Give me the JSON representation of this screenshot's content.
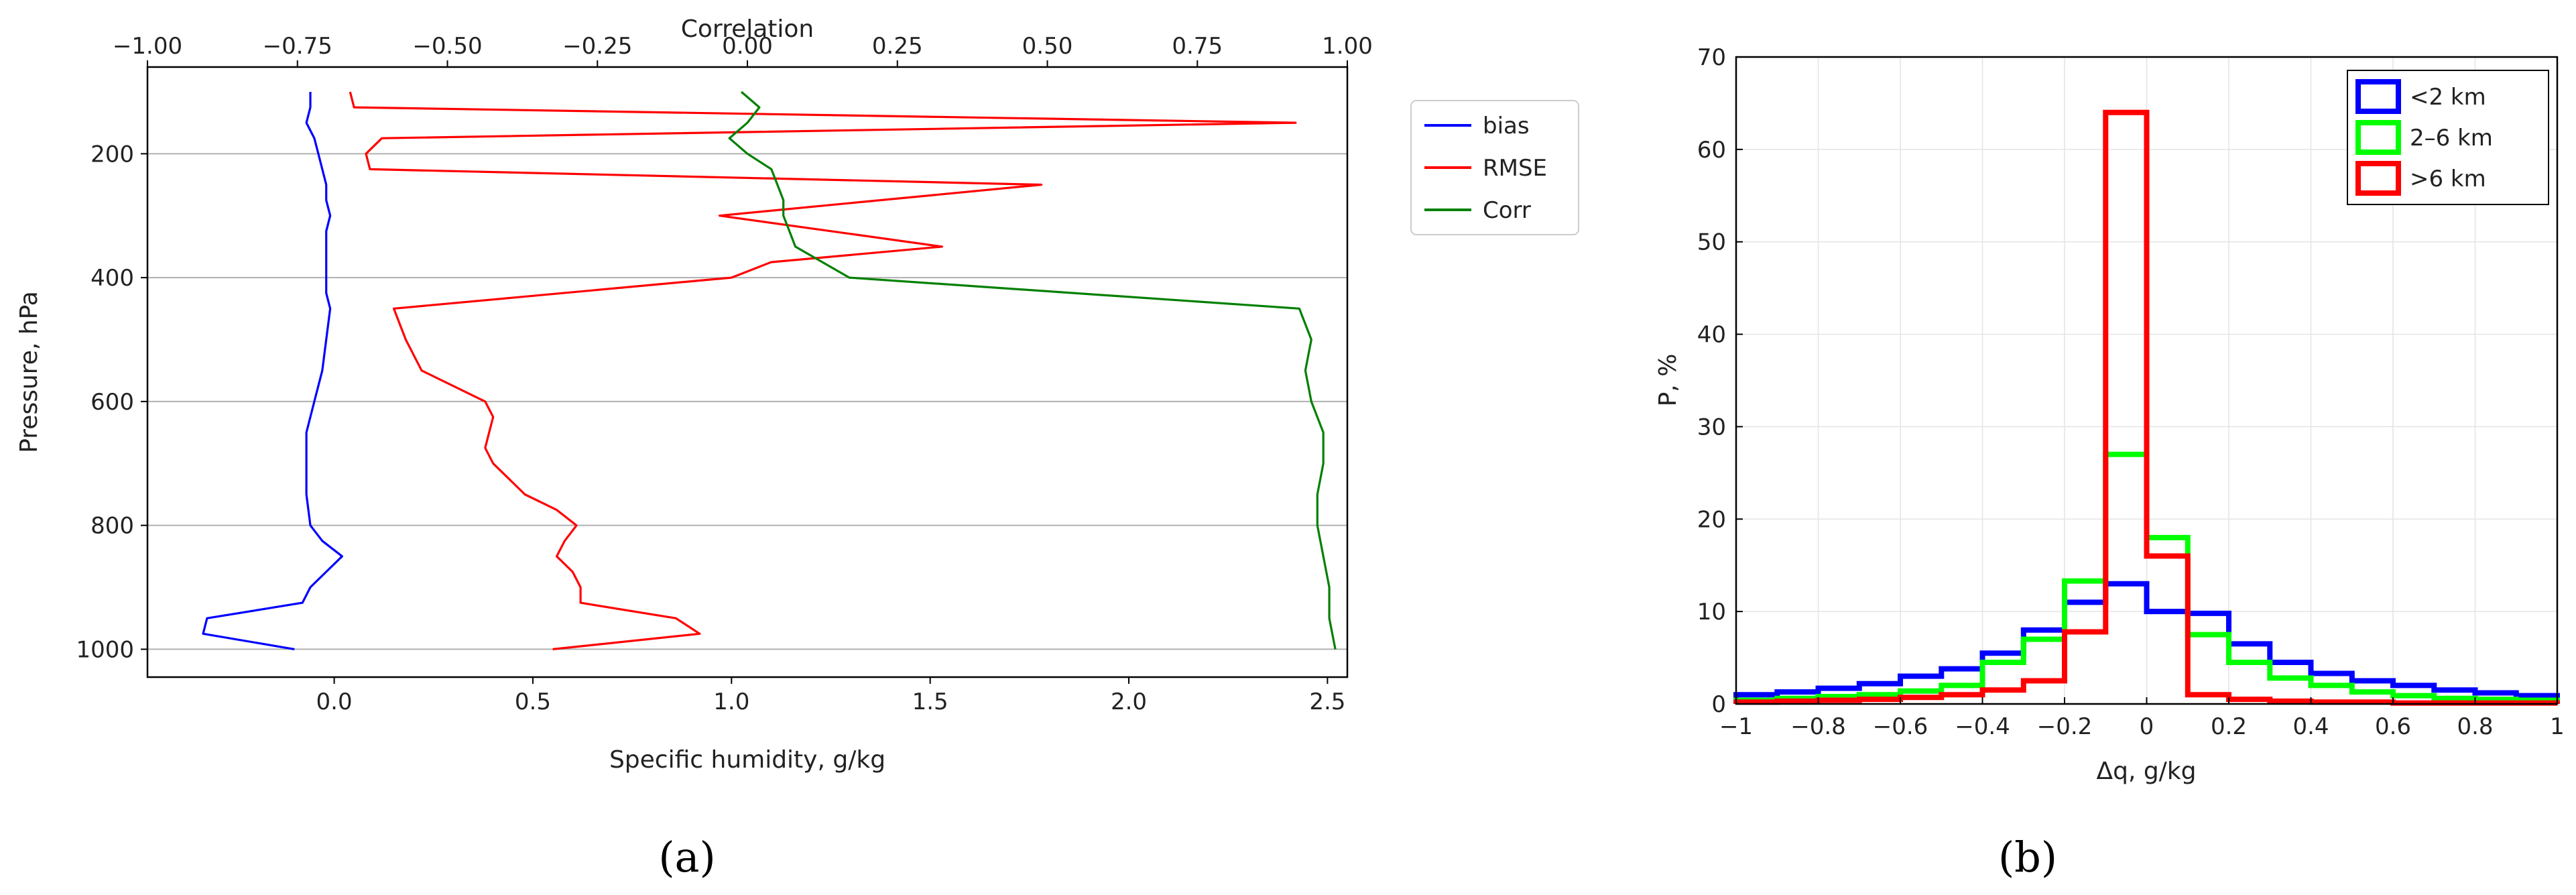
{
  "chart_data": [
    {
      "panel_label": "(a)",
      "type": "line",
      "title": "",
      "xlabel": "Specific humidity, g/kg",
      "ylabel": "Pressure, hPa",
      "top_xlabel": "Correlation",
      "xlim": [
        -0.47,
        2.55
      ],
      "top_xlim": [
        -1.0,
        1.0
      ],
      "ylim": [
        1045,
        60
      ],
      "y_inverted": true,
      "xticks": [
        0.0,
        0.5,
        1.0,
        1.5,
        2.0,
        2.5
      ],
      "xtick_labels": [
        "0.0",
        "0.5",
        "1.0",
        "1.5",
        "2.0",
        "2.5"
      ],
      "top_xticks": [
        -1.0,
        -0.75,
        -0.5,
        -0.25,
        0.0,
        0.25,
        0.5,
        0.75,
        1.0
      ],
      "top_xtick_labels": [
        "−1.00",
        "−0.75",
        "−0.50",
        "−0.25",
        "0.00",
        "0.25",
        "0.50",
        "0.75",
        "1.00"
      ],
      "yticks": [
        200,
        400,
        600,
        800,
        1000
      ],
      "ytick_labels": [
        "200",
        "400",
        "600",
        "800",
        "1000"
      ],
      "grid": "horizontal",
      "legend_position": "outside-right",
      "series": [
        {
          "name": "bias",
          "color": "#0000ff",
          "axis": "bottom",
          "points": [
            [
              -0.06,
              100
            ],
            [
              -0.06,
              125
            ],
            [
              -0.07,
              150
            ],
            [
              -0.05,
              175
            ],
            [
              -0.04,
              200
            ],
            [
              -0.03,
              225
            ],
            [
              -0.02,
              250
            ],
            [
              -0.02,
              275
            ],
            [
              -0.01,
              300
            ],
            [
              -0.02,
              325
            ],
            [
              -0.02,
              350
            ],
            [
              -0.02,
              375
            ],
            [
              -0.02,
              400
            ],
            [
              -0.02,
              425
            ],
            [
              -0.01,
              450
            ],
            [
              -0.02,
              500
            ],
            [
              -0.03,
              550
            ],
            [
              -0.05,
              600
            ],
            [
              -0.07,
              650
            ],
            [
              -0.07,
              700
            ],
            [
              -0.07,
              750
            ],
            [
              -0.06,
              800
            ],
            [
              -0.03,
              825
            ],
            [
              0.02,
              850
            ],
            [
              -0.02,
              875
            ],
            [
              -0.06,
              900
            ],
            [
              -0.08,
              925
            ],
            [
              -0.32,
              950
            ],
            [
              -0.33,
              975
            ],
            [
              -0.1,
              1000
            ]
          ]
        },
        {
          "name": "RMSE",
          "color": "#ff0000",
          "axis": "bottom",
          "points": [
            [
              0.04,
              100
            ],
            [
              0.05,
              125
            ],
            [
              2.42,
              150
            ],
            [
              0.12,
              175
            ],
            [
              0.08,
              200
            ],
            [
              0.09,
              225
            ],
            [
              1.78,
              250
            ],
            [
              0.97,
              300
            ],
            [
              1.53,
              350
            ],
            [
              1.1,
              375
            ],
            [
              1.0,
              400
            ],
            [
              0.15,
              450
            ],
            [
              0.18,
              500
            ],
            [
              0.22,
              550
            ],
            [
              0.38,
              600
            ],
            [
              0.4,
              625
            ],
            [
              0.39,
              650
            ],
            [
              0.38,
              675
            ],
            [
              0.4,
              700
            ],
            [
              0.48,
              750
            ],
            [
              0.56,
              775
            ],
            [
              0.61,
              800
            ],
            [
              0.58,
              825
            ],
            [
              0.56,
              850
            ],
            [
              0.6,
              875
            ],
            [
              0.62,
              900
            ],
            [
              0.62,
              925
            ],
            [
              0.86,
              950
            ],
            [
              0.92,
              975
            ],
            [
              0.55,
              1000
            ]
          ]
        },
        {
          "name": "Corr",
          "color": "#008000",
          "axis": "top",
          "points": [
            [
              -0.01,
              100
            ],
            [
              0.02,
              125
            ],
            [
              0.0,
              150
            ],
            [
              -0.03,
              175
            ],
            [
              0.0,
              200
            ],
            [
              0.04,
              225
            ],
            [
              0.05,
              250
            ],
            [
              0.06,
              275
            ],
            [
              0.06,
              300
            ],
            [
              0.07,
              325
            ],
            [
              0.08,
              350
            ],
            [
              0.17,
              400
            ],
            [
              0.92,
              450
            ],
            [
              0.94,
              500
            ],
            [
              0.93,
              550
            ],
            [
              0.94,
              600
            ],
            [
              0.96,
              650
            ],
            [
              0.96,
              700
            ],
            [
              0.95,
              750
            ],
            [
              0.95,
              800
            ],
            [
              0.96,
              850
            ],
            [
              0.97,
              900
            ],
            [
              0.97,
              950
            ],
            [
              0.98,
              1000
            ]
          ]
        }
      ]
    },
    {
      "panel_label": "(b)",
      "type": "bar",
      "subtype": "stairs-histogram",
      "title": "",
      "xlabel": "Δq, g/kg",
      "ylabel": "P, %",
      "xlim": [
        -1,
        1
      ],
      "ylim": [
        0,
        70
      ],
      "xticks": [
        -1,
        -0.8,
        -0.6,
        -0.4,
        -0.2,
        0,
        0.2,
        0.4,
        0.6,
        0.8,
        1
      ],
      "xtick_labels": [
        "−1",
        "−0.8",
        "−0.6",
        "−0.4",
        "−0.2",
        "0",
        "0.2",
        "0.4",
        "0.6",
        "0.8",
        "1"
      ],
      "yticks": [
        0,
        10,
        20,
        30,
        40,
        50,
        60,
        70
      ],
      "ytick_labels": [
        "0",
        "10",
        "20",
        "30",
        "40",
        "50",
        "60",
        "70"
      ],
      "grid": "both",
      "legend_position": "top-right",
      "bin_edges": [
        -1.0,
        -0.9,
        -0.8,
        -0.7,
        -0.6,
        -0.5,
        -0.4,
        -0.3,
        -0.2,
        -0.1,
        0.0,
        0.1,
        0.2,
        0.3,
        0.4,
        0.5,
        0.6,
        0.7,
        0.8,
        0.9,
        1.0
      ],
      "series": [
        {
          "name": "<2 km",
          "color": "#0000ff",
          "values": [
            1.0,
            1.3,
            1.7,
            2.2,
            3.0,
            3.8,
            5.5,
            8.0,
            11.0,
            13.0,
            10.0,
            9.8,
            6.5,
            4.5,
            3.3,
            2.5,
            2.0,
            1.5,
            1.2,
            0.9
          ]
        },
        {
          "name": "2–6 km",
          "color": "#00ff00",
          "values": [
            0.4,
            0.6,
            0.8,
            1.0,
            1.4,
            2.0,
            4.5,
            7.0,
            13.3,
            27.0,
            18.0,
            7.5,
            4.5,
            2.8,
            2.0,
            1.3,
            0.9,
            0.6,
            0.5,
            0.4
          ]
        },
        {
          "name": ">6 km",
          "color": "#ff0000",
          "values": [
            0.2,
            0.3,
            0.4,
            0.5,
            0.7,
            1.0,
            1.5,
            2.5,
            7.8,
            64.0,
            16.0,
            1.0,
            0.5,
            0.3,
            0.2,
            0.2,
            0.1,
            0.1,
            0.1,
            0.1
          ]
        }
      ]
    }
  ]
}
